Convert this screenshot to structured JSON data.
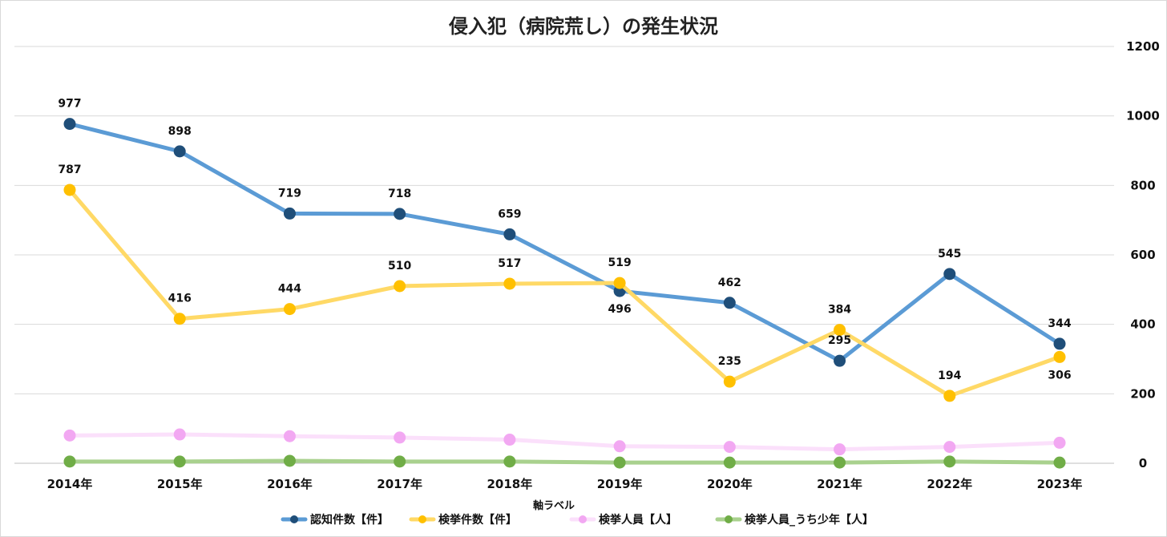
{
  "chart_data": {
    "type": "line",
    "title": "侵入犯（病院荒し）の発生状況",
    "xlabel": "軸ラベル",
    "ylabel": "",
    "ylim": [
      0,
      1200
    ],
    "yticks": [
      0,
      200,
      400,
      600,
      800,
      1000,
      1200
    ],
    "y_axis_side": "right",
    "grid": true,
    "legend": "bottom",
    "categories": [
      "2014年",
      "2015年",
      "2016年",
      "2017年",
      "2018年",
      "2019年",
      "2020年",
      "2021年",
      "2022年",
      "2023年"
    ],
    "series": [
      {
        "name": "認知件数【件】",
        "values": [
          977,
          898,
          719,
          718,
          659,
          496,
          462,
          295,
          545,
          344
        ],
        "line_color": "#5b9bd5",
        "marker_color": "#1f4e79",
        "show_labels": true,
        "label_pos": [
          "above",
          "above",
          "above",
          "above",
          "above",
          "below",
          "above",
          "above",
          "above",
          "above"
        ]
      },
      {
        "name": "検挙件数【件】",
        "values": [
          787,
          416,
          444,
          510,
          517,
          519,
          235,
          384,
          194,
          306
        ],
        "line_color": "#ffd966",
        "marker_color": "#ffc000",
        "show_labels": true,
        "label_pos": [
          "above",
          "above",
          "above",
          "above",
          "above",
          "above",
          "above",
          "above",
          "above",
          "below"
        ]
      },
      {
        "name": "検挙人員【人】",
        "values": [
          80,
          83,
          78,
          74,
          68,
          49,
          47,
          40,
          47,
          59
        ],
        "line_color": "#fbe0fb",
        "marker_color": "#f2a8f2",
        "show_labels": false
      },
      {
        "name": "検挙人員_うち少年【人】",
        "values": [
          5,
          5,
          7,
          5,
          5,
          2,
          2,
          2,
          5,
          2
        ],
        "line_color": "#a9d18e",
        "marker_color": "#70ad47",
        "show_labels": false
      }
    ]
  }
}
